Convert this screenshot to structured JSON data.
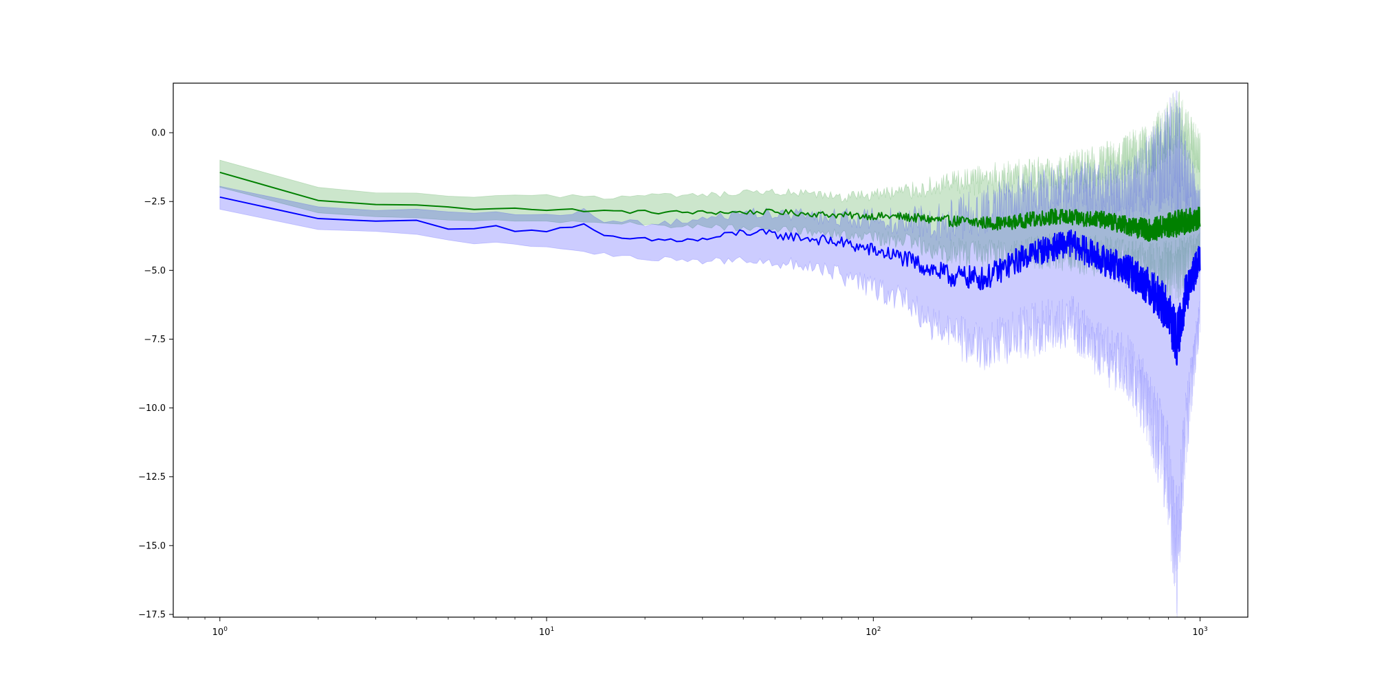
{
  "chart_data": {
    "type": "line",
    "title": "",
    "xlabel": "",
    "ylabel": "",
    "xscale": "log",
    "xlim": [
      0.72,
      1400
    ],
    "ylim": [
      -17.6,
      1.8
    ],
    "grid": false,
    "legend": "none",
    "x_ticks": [
      {
        "value": 1,
        "label": "10",
        "exp": "0"
      },
      {
        "value": 10,
        "label": "10",
        "exp": "1"
      },
      {
        "value": 100,
        "label": "10",
        "exp": "2"
      },
      {
        "value": 1000,
        "label": "10",
        "exp": "3"
      }
    ],
    "y_ticks": [
      {
        "value": 0.0,
        "label": "0.0"
      },
      {
        "value": -2.5,
        "label": "−2.5"
      },
      {
        "value": -5.0,
        "label": "−5.0"
      },
      {
        "value": -7.5,
        "label": "−7.5"
      },
      {
        "value": -10.0,
        "label": "−10.0"
      },
      {
        "value": -12.5,
        "label": "−12.5"
      },
      {
        "value": -15.0,
        "label": "−15.0"
      },
      {
        "value": -17.5,
        "label": "−17.5"
      }
    ],
    "series": [
      {
        "color": "#008000",
        "band_color": "#008000",
        "band_opacity": 0.2,
        "anchors_x": [
          1,
          2,
          3,
          4,
          6,
          8,
          10,
          12,
          15,
          20,
          30,
          50,
          80,
          120,
          170,
          250,
          350,
          500,
          700,
          850,
          1000
        ],
        "mean": [
          -1.45,
          -2.45,
          -2.62,
          -2.62,
          -2.78,
          -2.72,
          -2.82,
          -2.8,
          -2.85,
          -2.88,
          -2.9,
          -2.88,
          -3.0,
          -3.05,
          -3.2,
          -3.3,
          -3.05,
          -3.15,
          -3.55,
          -3.3,
          -3.1
        ],
        "lower": [
          -2.0,
          -2.9,
          -3.05,
          -3.1,
          -3.2,
          -3.2,
          -3.25,
          -3.25,
          -3.3,
          -3.35,
          -3.4,
          -3.5,
          -3.7,
          -3.9,
          -4.3,
          -4.5,
          -4.3,
          -4.5,
          -5.0,
          -5.0,
          -4.4
        ],
        "upper": [
          -1.0,
          -2.0,
          -2.2,
          -2.2,
          -2.35,
          -2.3,
          -2.3,
          -2.3,
          -2.35,
          -2.3,
          -2.3,
          -2.15,
          -2.35,
          -2.15,
          -1.9,
          -1.6,
          -1.5,
          -1.2,
          -0.6,
          0.5,
          -0.8
        ],
        "noise_amp": [
          0.02,
          0.02,
          0.02,
          0.02,
          0.02,
          0.03,
          0.04,
          0.05,
          0.06,
          0.07,
          0.08,
          0.1,
          0.12,
          0.15,
          0.2,
          0.25,
          0.3,
          0.3,
          0.4,
          0.5,
          0.4
        ],
        "band_noise_amp": [
          0.02,
          0.02,
          0.02,
          0.03,
          0.04,
          0.05,
          0.06,
          0.07,
          0.08,
          0.1,
          0.12,
          0.15,
          0.2,
          0.3,
          0.5,
          0.6,
          0.7,
          0.8,
          1.0,
          1.2,
          0.8
        ]
      },
      {
        "color": "#0000ff",
        "band_color": "#0000ff",
        "band_opacity": 0.2,
        "anchors_x": [
          1,
          2,
          3,
          4,
          5,
          6,
          7,
          8,
          10,
          12,
          13,
          15,
          20,
          30,
          40,
          60,
          80,
          120,
          170,
          220,
          300,
          400,
          500,
          600,
          700,
          800,
          850,
          900,
          1000
        ],
        "mean": [
          -2.35,
          -3.1,
          -3.2,
          -3.2,
          -3.5,
          -3.5,
          -3.35,
          -3.55,
          -3.55,
          -3.4,
          -3.35,
          -3.8,
          -3.9,
          -3.9,
          -3.6,
          -3.8,
          -4.0,
          -4.5,
          -5.2,
          -5.3,
          -4.4,
          -4.0,
          -4.6,
          -5.0,
          -5.6,
          -6.5,
          -7.6,
          -6.0,
          -4.5
        ],
        "lower": [
          -2.8,
          -3.5,
          -3.6,
          -3.7,
          -3.9,
          -4.0,
          -4.0,
          -4.1,
          -4.2,
          -4.2,
          -4.3,
          -4.4,
          -4.6,
          -4.7,
          -4.6,
          -4.8,
          -5.2,
          -6.0,
          -7.3,
          -7.8,
          -7.2,
          -6.8,
          -8.0,
          -8.5,
          -10.0,
          -12.5,
          -15.5,
          -11.0,
          -6.6
        ],
        "upper": [
          -1.95,
          -2.7,
          -2.8,
          -2.8,
          -2.9,
          -2.95,
          -2.85,
          -2.95,
          -3.0,
          -2.9,
          -2.8,
          -3.2,
          -3.3,
          -3.2,
          -2.9,
          -3.0,
          -3.1,
          -3.2,
          -3.2,
          -2.8,
          -2.4,
          -2.0,
          -2.1,
          -2.2,
          -1.5,
          -0.8,
          -0.8,
          -1.5,
          -2.8
        ],
        "noise_amp": [
          0.02,
          0.02,
          0.02,
          0.02,
          0.02,
          0.02,
          0.03,
          0.04,
          0.05,
          0.06,
          0.06,
          0.08,
          0.1,
          0.12,
          0.15,
          0.18,
          0.22,
          0.3,
          0.4,
          0.45,
          0.5,
          0.5,
          0.55,
          0.6,
          0.7,
          0.9,
          1.0,
          0.8,
          0.5
        ],
        "band_noise_amp": [
          0.02,
          0.02,
          0.03,
          0.04,
          0.04,
          0.05,
          0.05,
          0.06,
          0.07,
          0.08,
          0.09,
          0.1,
          0.12,
          0.15,
          0.18,
          0.25,
          0.35,
          0.5,
          0.8,
          0.9,
          1.0,
          1.0,
          1.1,
          1.2,
          1.5,
          2.0,
          2.5,
          1.5,
          0.8
        ]
      }
    ]
  }
}
